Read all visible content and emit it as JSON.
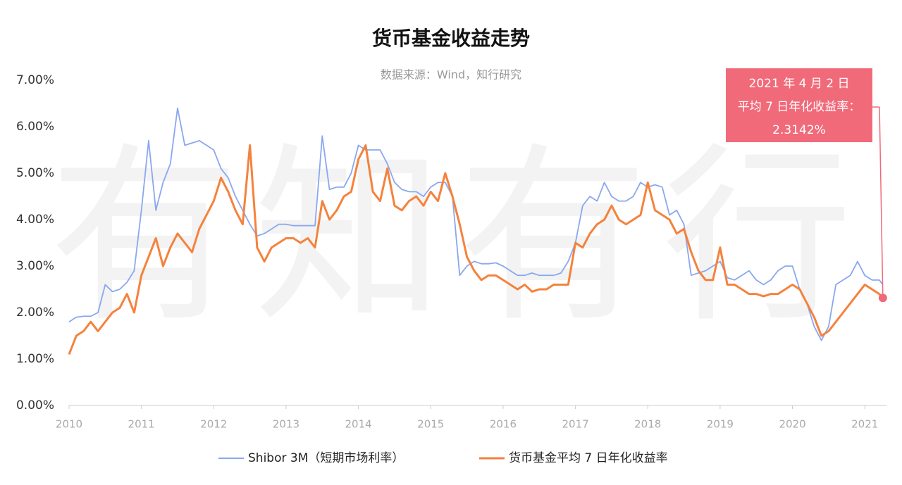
{
  "chart_data": {
    "type": "line",
    "title": "货币基金收益走势",
    "subtitle": "数据来源：Wind，知行研究",
    "watermark": "有知有行",
    "annotation": [
      "2021 年 4 月 2 日",
      "平均 7 日年化收益率：",
      "2.3142%"
    ],
    "legend": "bottom",
    "grid": false,
    "xlim": [
      2010,
      2021.3
    ],
    "xticks": [
      2010,
      2011,
      2012,
      2013,
      2014,
      2015,
      2016,
      2017,
      2018,
      2019,
      2020,
      2021
    ],
    "ylim": [
      0,
      7
    ],
    "yticks": [
      {
        "value": 0,
        "label": "0.00%"
      },
      {
        "value": 1,
        "label": "1.00%"
      },
      {
        "value": 2,
        "label": "2.00%"
      },
      {
        "value": 3,
        "label": "3.00%"
      },
      {
        "value": 4,
        "label": "4.00%"
      },
      {
        "value": 5,
        "label": "5.00%"
      },
      {
        "value": 6,
        "label": "6.00%"
      },
      {
        "value": 7,
        "label": "7.00%"
      }
    ],
    "x": [
      2010.0,
      2010.1,
      2010.2,
      2010.3,
      2010.4,
      2010.5,
      2010.6,
      2010.7,
      2010.8,
      2010.9,
      2011.0,
      2011.1,
      2011.2,
      2011.3,
      2011.4,
      2011.5,
      2011.6,
      2011.7,
      2011.8,
      2011.9,
      2012.0,
      2012.1,
      2012.2,
      2012.3,
      2012.4,
      2012.5,
      2012.6,
      2012.7,
      2012.8,
      2012.9,
      2013.0,
      2013.1,
      2013.2,
      2013.3,
      2013.4,
      2013.5,
      2013.6,
      2013.7,
      2013.8,
      2013.9,
      2014.0,
      2014.1,
      2014.2,
      2014.3,
      2014.4,
      2014.5,
      2014.6,
      2014.7,
      2014.8,
      2014.9,
      2015.0,
      2015.1,
      2015.2,
      2015.3,
      2015.4,
      2015.5,
      2015.6,
      2015.7,
      2015.8,
      2015.9,
      2016.0,
      2016.1,
      2016.2,
      2016.3,
      2016.4,
      2016.5,
      2016.6,
      2016.7,
      2016.8,
      2016.9,
      2017.0,
      2017.1,
      2017.2,
      2017.3,
      2017.4,
      2017.5,
      2017.6,
      2017.7,
      2017.8,
      2017.9,
      2018.0,
      2018.1,
      2018.2,
      2018.3,
      2018.4,
      2018.5,
      2018.6,
      2018.7,
      2018.8,
      2018.9,
      2019.0,
      2019.1,
      2019.2,
      2019.3,
      2019.4,
      2019.5,
      2019.6,
      2019.7,
      2019.8,
      2019.9,
      2020.0,
      2020.1,
      2020.2,
      2020.3,
      2020.4,
      2020.5,
      2020.6,
      2020.7,
      2020.8,
      2020.9,
      2021.0,
      2021.1,
      2021.2,
      2021.25
    ],
    "series": [
      {
        "name": "Shibor 3M（短期市场利率）",
        "color": "#8aa7f0",
        "values": [
          1.8,
          1.9,
          1.92,
          1.92,
          2.0,
          2.6,
          2.45,
          2.5,
          2.65,
          2.9,
          4.2,
          5.7,
          4.2,
          4.8,
          5.2,
          6.4,
          5.6,
          5.65,
          5.7,
          5.6,
          5.5,
          5.1,
          4.9,
          4.5,
          4.2,
          3.9,
          3.65,
          3.7,
          3.8,
          3.9,
          3.9,
          3.87,
          3.87,
          3.87,
          3.87,
          5.8,
          4.65,
          4.7,
          4.7,
          5.0,
          5.6,
          5.5,
          5.5,
          5.5,
          5.2,
          4.8,
          4.65,
          4.6,
          4.6,
          4.5,
          4.7,
          4.8,
          4.8,
          4.5,
          2.8,
          3.0,
          3.1,
          3.05,
          3.05,
          3.07,
          3.0,
          2.9,
          2.8,
          2.8,
          2.85,
          2.8,
          2.8,
          2.8,
          2.85,
          3.1,
          3.5,
          4.3,
          4.5,
          4.4,
          4.8,
          4.5,
          4.4,
          4.4,
          4.5,
          4.8,
          4.7,
          4.75,
          4.7,
          4.1,
          4.2,
          3.9,
          2.8,
          2.85,
          2.9,
          3.0,
          3.1,
          2.75,
          2.7,
          2.8,
          2.9,
          2.7,
          2.6,
          2.7,
          2.9,
          3.0,
          3.0,
          2.5,
          2.2,
          1.7,
          1.4,
          1.7,
          2.6,
          2.7,
          2.8,
          3.1,
          2.8,
          2.7,
          2.7,
          2.6
        ]
      },
      {
        "name": "货币基金平均 7 日年化收益率",
        "color": "#f5823c",
        "values": [
          1.1,
          1.5,
          1.6,
          1.8,
          1.6,
          1.8,
          2.0,
          2.1,
          2.4,
          2.0,
          2.8,
          3.2,
          3.6,
          3.0,
          3.4,
          3.7,
          3.5,
          3.3,
          3.8,
          4.1,
          4.4,
          4.9,
          4.6,
          4.2,
          3.9,
          5.6,
          3.4,
          3.1,
          3.4,
          3.5,
          3.6,
          3.6,
          3.5,
          3.6,
          3.4,
          4.4,
          4.0,
          4.2,
          4.5,
          4.6,
          5.3,
          5.6,
          4.6,
          4.4,
          5.1,
          4.3,
          4.2,
          4.4,
          4.5,
          4.3,
          4.6,
          4.4,
          5.0,
          4.5,
          3.9,
          3.2,
          2.9,
          2.7,
          2.8,
          2.8,
          2.7,
          2.6,
          2.5,
          2.6,
          2.45,
          2.5,
          2.5,
          2.6,
          2.6,
          2.6,
          3.5,
          3.4,
          3.7,
          3.9,
          4.0,
          4.3,
          4.0,
          3.9,
          4.0,
          4.1,
          4.8,
          4.2,
          4.1,
          4.0,
          3.7,
          3.8,
          3.3,
          2.9,
          2.7,
          2.7,
          3.4,
          2.6,
          2.6,
          2.5,
          2.4,
          2.4,
          2.35,
          2.4,
          2.4,
          2.5,
          2.6,
          2.5,
          2.2,
          1.9,
          1.5,
          1.6,
          1.8,
          2.0,
          2.2,
          2.4,
          2.6,
          2.5,
          2.4,
          2.3142
        ]
      }
    ]
  }
}
